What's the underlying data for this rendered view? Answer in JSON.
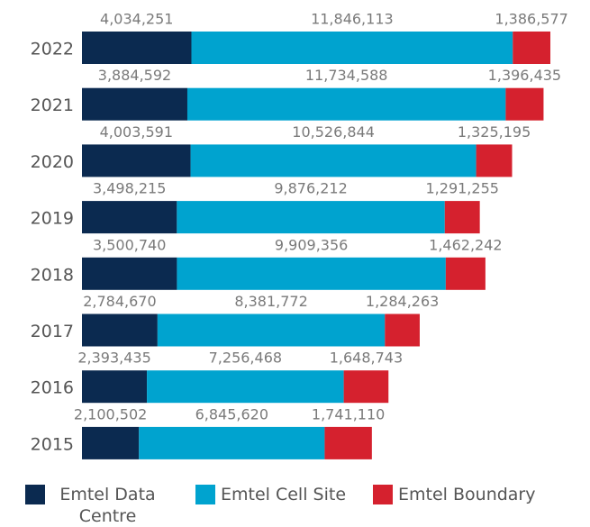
{
  "chart_data": {
    "type": "stacked-bar-horizontal",
    "categories": [
      "2022",
      "2021",
      "2020",
      "2019",
      "2018",
      "2017",
      "2016",
      "2015"
    ],
    "series": [
      {
        "name": "Emtel Data Centre",
        "color": "#0b2a50",
        "values": [
          4034251,
          3884592,
          4003591,
          3498215,
          3500740,
          2784670,
          2393435,
          2100502
        ],
        "value_labels": [
          "4,034,251",
          "3,884,592",
          "4,003,591",
          "3,498,215",
          "3,500,740",
          "2,784,670",
          "2,393,435",
          "2,100,502"
        ]
      },
      {
        "name": "Emtel Cell Site",
        "color": "#00a3cf",
        "values": [
          11846113,
          11734588,
          10526844,
          9876212,
          9909356,
          8381772,
          7256468,
          6845620
        ],
        "value_labels": [
          "11,846,113",
          "11,734,588",
          "10,526,844",
          "9,876,212",
          "9,909,356",
          "8,381,772",
          "7,256,468",
          "6,845,620"
        ]
      },
      {
        "name": "Emtel Boundary",
        "color": "#d5212e",
        "values": [
          1386577,
          1396435,
          1325195,
          1291255,
          1462242,
          1284263,
          1648743,
          1741110
        ],
        "value_labels": [
          "1,386,577",
          "1,396,435",
          "1,325,195",
          "1,291,255",
          "1,462,242",
          "1,284,263",
          "1,648,743",
          "1,741,110"
        ]
      }
    ],
    "legend": "bottom"
  }
}
